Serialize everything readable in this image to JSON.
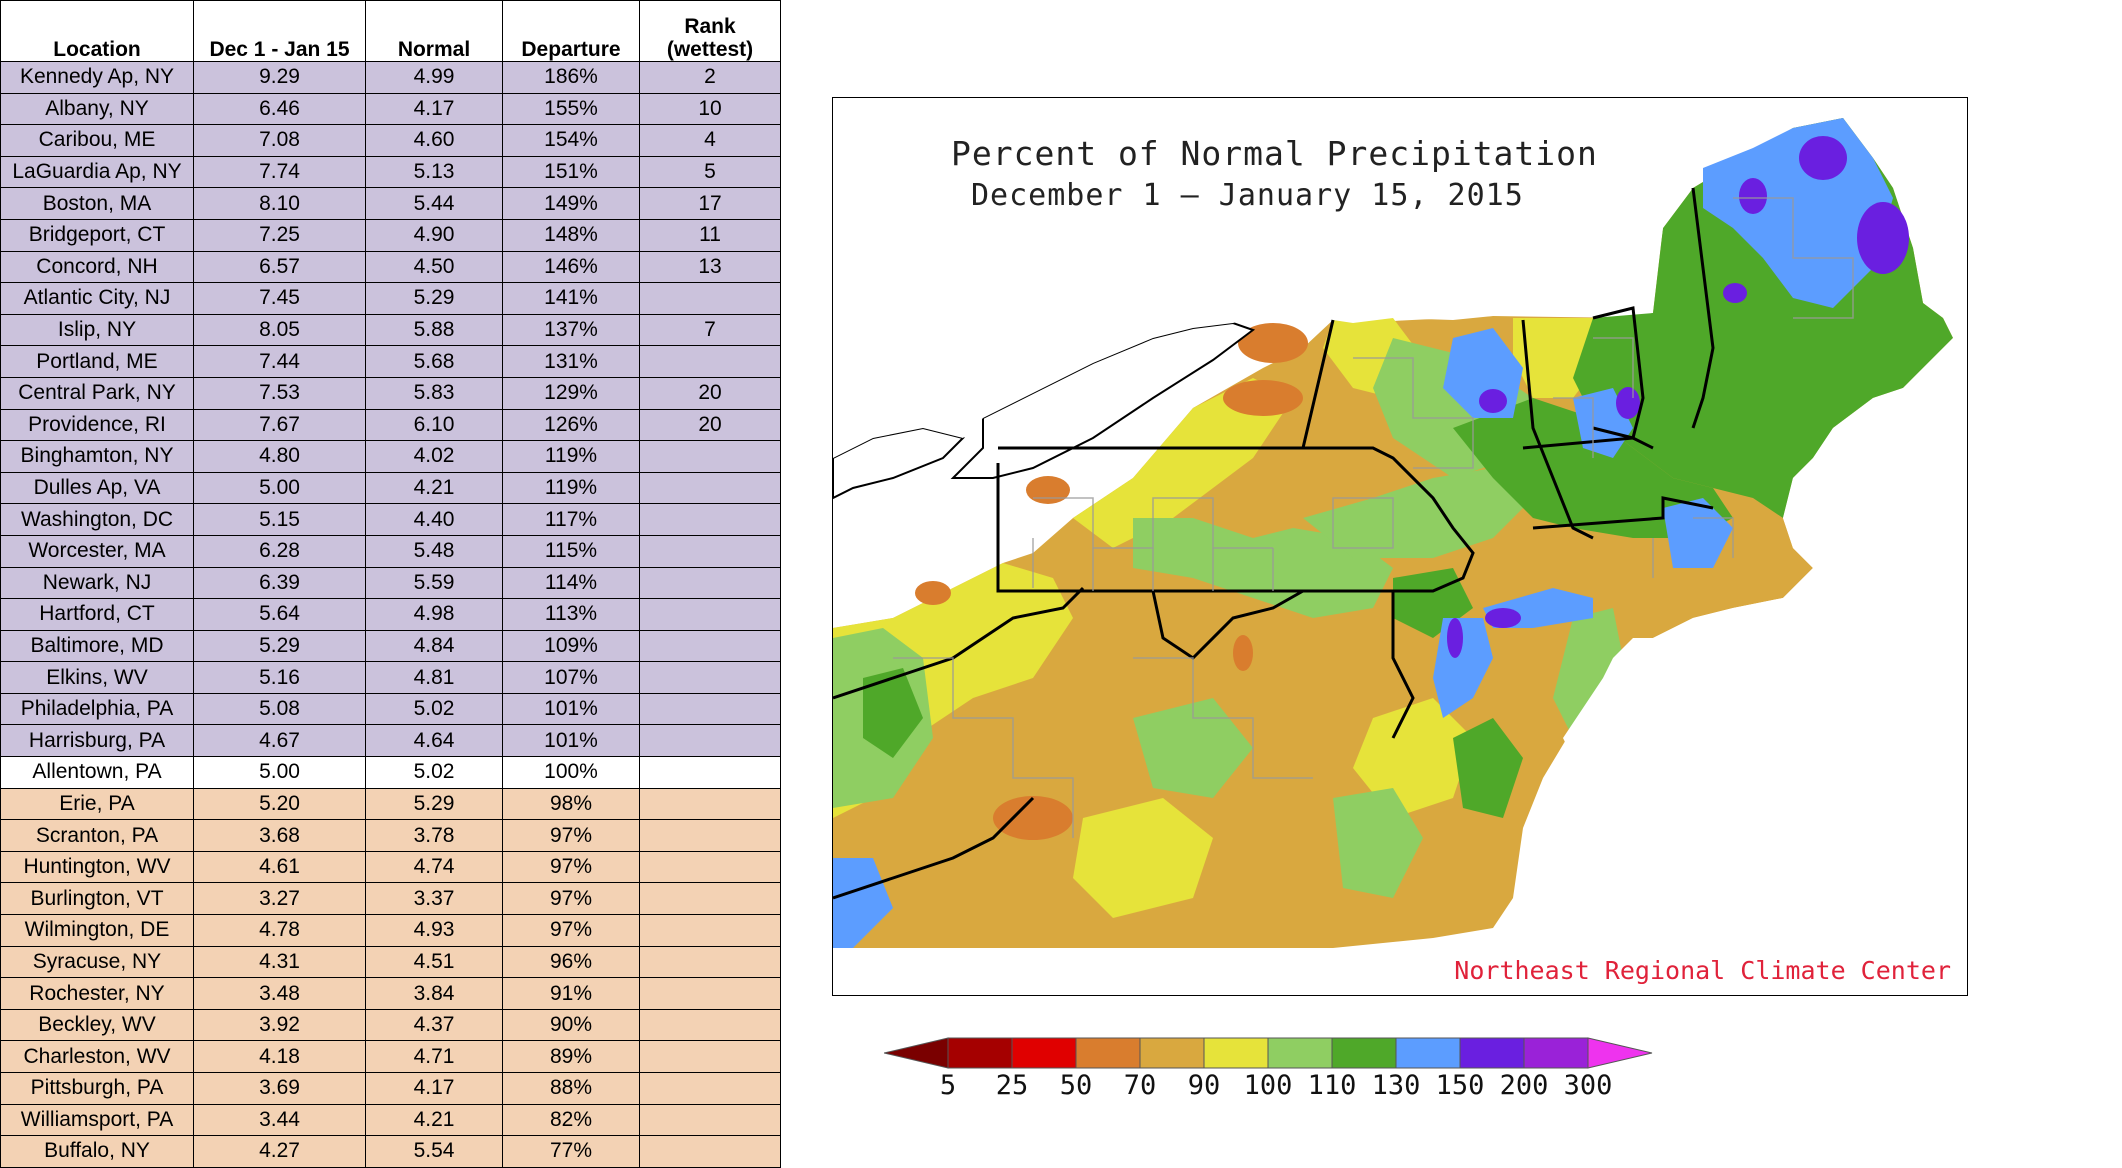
{
  "table": {
    "headers": {
      "location": "Location",
      "period": "Dec 1 - Jan 15",
      "normal": "Normal",
      "departure": "Departure",
      "rank_line1": "Rank",
      "rank_line2": "(wettest)"
    },
    "rows": [
      {
        "location": "Kennedy Ap, NY",
        "value": "9.29",
        "normal": "4.99",
        "departure": "186%",
        "rank": "2",
        "group": "wet"
      },
      {
        "location": "Albany, NY",
        "value": "6.46",
        "normal": "4.17",
        "departure": "155%",
        "rank": "10",
        "group": "wet"
      },
      {
        "location": "Caribou, ME",
        "value": "7.08",
        "normal": "4.60",
        "departure": "154%",
        "rank": "4",
        "group": "wet"
      },
      {
        "location": "LaGuardia Ap, NY",
        "value": "7.74",
        "normal": "5.13",
        "departure": "151%",
        "rank": "5",
        "group": "wet"
      },
      {
        "location": "Boston, MA",
        "value": "8.10",
        "normal": "5.44",
        "departure": "149%",
        "rank": "17",
        "group": "wet"
      },
      {
        "location": "Bridgeport, CT",
        "value": "7.25",
        "normal": "4.90",
        "departure": "148%",
        "rank": "11",
        "group": "wet"
      },
      {
        "location": "Concord, NH",
        "value": "6.57",
        "normal": "4.50",
        "departure": "146%",
        "rank": "13",
        "group": "wet"
      },
      {
        "location": "Atlantic City, NJ",
        "value": "7.45",
        "normal": "5.29",
        "departure": "141%",
        "rank": "",
        "group": "wet"
      },
      {
        "location": "Islip, NY",
        "value": "8.05",
        "normal": "5.88",
        "departure": "137%",
        "rank": "7",
        "group": "wet"
      },
      {
        "location": "Portland, ME",
        "value": "7.44",
        "normal": "5.68",
        "departure": "131%",
        "rank": "",
        "group": "wet"
      },
      {
        "location": "Central Park, NY",
        "value": "7.53",
        "normal": "5.83",
        "departure": "129%",
        "rank": "20",
        "group": "wet"
      },
      {
        "location": "Providence, RI",
        "value": "7.67",
        "normal": "6.10",
        "departure": "126%",
        "rank": "20",
        "group": "wet"
      },
      {
        "location": "Binghamton, NY",
        "value": "4.80",
        "normal": "4.02",
        "departure": "119%",
        "rank": "",
        "group": "wet"
      },
      {
        "location": "Dulles Ap, VA",
        "value": "5.00",
        "normal": "4.21",
        "departure": "119%",
        "rank": "",
        "group": "wet"
      },
      {
        "location": "Washington, DC",
        "value": "5.15",
        "normal": "4.40",
        "departure": "117%",
        "rank": "",
        "group": "wet"
      },
      {
        "location": "Worcester, MA",
        "value": "6.28",
        "normal": "5.48",
        "departure": "115%",
        "rank": "",
        "group": "wet"
      },
      {
        "location": "Newark, NJ",
        "value": "6.39",
        "normal": "5.59",
        "departure": "114%",
        "rank": "",
        "group": "wet"
      },
      {
        "location": "Hartford, CT",
        "value": "5.64",
        "normal": "4.98",
        "departure": "113%",
        "rank": "",
        "group": "wet"
      },
      {
        "location": "Baltimore, MD",
        "value": "5.29",
        "normal": "4.84",
        "departure": "109%",
        "rank": "",
        "group": "wet"
      },
      {
        "location": "Elkins, WV",
        "value": "5.16",
        "normal": "4.81",
        "departure": "107%",
        "rank": "",
        "group": "wet"
      },
      {
        "location": "Philadelphia, PA",
        "value": "5.08",
        "normal": "5.02",
        "departure": "101%",
        "rank": "",
        "group": "wet"
      },
      {
        "location": "Harrisburg, PA",
        "value": "4.67",
        "normal": "4.64",
        "departure": "101%",
        "rank": "",
        "group": "wet"
      },
      {
        "location": "Allentown, PA",
        "value": "5.00",
        "normal": "5.02",
        "departure": "100%",
        "rank": "",
        "group": "normal"
      },
      {
        "location": "Erie, PA",
        "value": "5.20",
        "normal": "5.29",
        "departure": "98%",
        "rank": "",
        "group": "dry"
      },
      {
        "location": "Scranton, PA",
        "value": "3.68",
        "normal": "3.78",
        "departure": "97%",
        "rank": "",
        "group": "dry"
      },
      {
        "location": "Huntington, WV",
        "value": "4.61",
        "normal": "4.74",
        "departure": "97%",
        "rank": "",
        "group": "dry"
      },
      {
        "location": "Burlington, VT",
        "value": "3.27",
        "normal": "3.37",
        "departure": "97%",
        "rank": "",
        "group": "dry"
      },
      {
        "location": "Wilmington, DE",
        "value": "4.78",
        "normal": "4.93",
        "departure": "97%",
        "rank": "",
        "group": "dry"
      },
      {
        "location": "Syracuse, NY",
        "value": "4.31",
        "normal": "4.51",
        "departure": "96%",
        "rank": "",
        "group": "dry"
      },
      {
        "location": "Rochester, NY",
        "value": "3.48",
        "normal": "3.84",
        "departure": "91%",
        "rank": "",
        "group": "dry"
      },
      {
        "location": "Beckley, WV",
        "value": "3.92",
        "normal": "4.37",
        "departure": "90%",
        "rank": "",
        "group": "dry"
      },
      {
        "location": "Charleston, WV",
        "value": "4.18",
        "normal": "4.71",
        "departure": "89%",
        "rank": "",
        "group": "dry"
      },
      {
        "location": "Pittsburgh, PA",
        "value": "3.69",
        "normal": "4.17",
        "departure": "88%",
        "rank": "",
        "group": "dry"
      },
      {
        "location": "Williamsport, PA",
        "value": "3.44",
        "normal": "4.21",
        "departure": "82%",
        "rank": "",
        "group": "dry"
      },
      {
        "location": "Buffalo, NY",
        "value": "4.27",
        "normal": "5.54",
        "departure": "77%",
        "rank": "",
        "group": "dry"
      }
    ],
    "colors": {
      "wet": "#cbc2dc",
      "dry": "#f3d2b4",
      "normal": "#ffffff"
    }
  },
  "map": {
    "title": "Percent of Normal Precipitation",
    "subtitle": "December 1 — January 15, 2015",
    "credit": "Northeast Regional Climate Center"
  },
  "legend": {
    "labels": [
      "5",
      "25",
      "50",
      "70",
      "90",
      "100",
      "110",
      "130",
      "150",
      "200",
      "300"
    ],
    "colors": [
      "#a50000",
      "#e00000",
      "#d97d2e",
      "#d9a83f",
      "#e6e33a",
      "#8fce62",
      "#4fa829",
      "#5c9dff",
      "#6a1fe0",
      "#9a22d8"
    ],
    "low_arrow_color": "#7a0000",
    "high_arrow_color": "#ee33ee"
  }
}
